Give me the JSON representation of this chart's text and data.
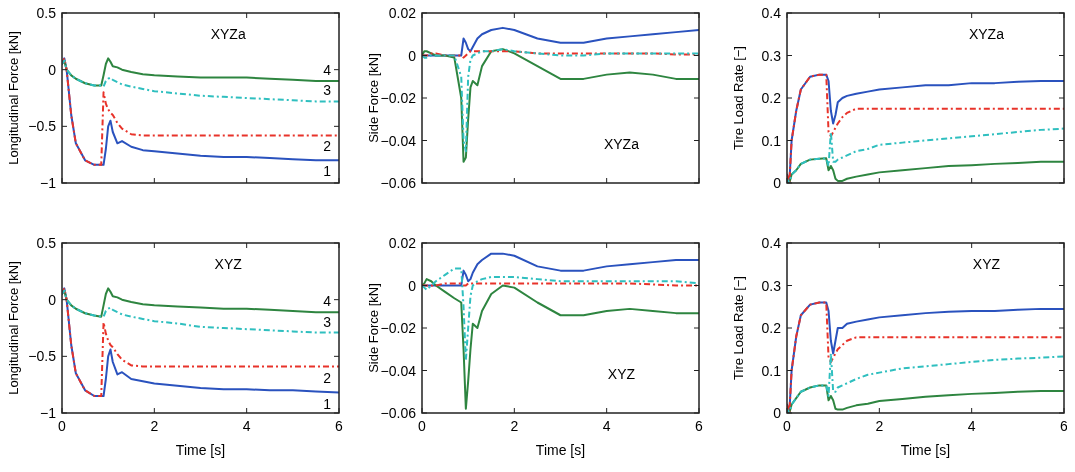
{
  "chart_data": [
    {
      "type": "line",
      "ylabel": "Longitudinal Force [kN]",
      "annotations": [
        "XYZa"
      ],
      "xlim": [
        0,
        6
      ],
      "xticks": [
        0,
        2,
        4,
        6
      ],
      "ylim": [
        -1,
        0.5
      ],
      "yticks": [
        {
          "value": -1,
          "label": "−1"
        },
        {
          "value": -0.5,
          "label": "−0.5"
        },
        0,
        0.5
      ],
      "grid": false,
      "legend": false,
      "tick_labels": "y",
      "x": [
        0,
        0.05,
        0.1,
        0.2,
        0.3,
        0.5,
        0.7,
        0.85,
        0.9,
        0.95,
        1.0,
        1.05,
        1.1,
        1.2,
        1.3,
        1.5,
        1.75,
        2,
        2.5,
        3,
        3.5,
        4,
        4.5,
        5,
        5.5,
        6
      ],
      "series": [
        {
          "name": "1",
          "color": "#2a52be",
          "line_style": "solid",
          "values": [
            0.05,
            0.1,
            0.0,
            -0.4,
            -0.65,
            -0.8,
            -0.84,
            -0.84,
            -0.84,
            -0.7,
            -0.5,
            -0.45,
            -0.55,
            -0.65,
            -0.63,
            -0.68,
            -0.71,
            -0.72,
            -0.74,
            -0.76,
            -0.77,
            -0.77,
            -0.78,
            -0.79,
            -0.8,
            -0.8
          ]
        },
        {
          "name": "2",
          "color": "#e8332a",
          "line_style": "dashed",
          "values": [
            0.05,
            0.1,
            0.0,
            -0.4,
            -0.65,
            -0.8,
            -0.84,
            -0.84,
            -0.2,
            -0.3,
            -0.35,
            -0.38,
            -0.4,
            -0.47,
            -0.52,
            -0.57,
            -0.58,
            -0.58,
            -0.58,
            -0.58,
            -0.58,
            -0.58,
            -0.58,
            -0.58,
            -0.58,
            -0.58
          ]
        },
        {
          "name": "3",
          "color": "#2fbfbf",
          "line_style": "dashed",
          "values": [
            0.05,
            0.08,
            0.0,
            -0.05,
            -0.08,
            -0.12,
            -0.14,
            -0.14,
            -0.15,
            -0.1,
            -0.08,
            -0.07,
            -0.09,
            -0.11,
            -0.13,
            -0.15,
            -0.17,
            -0.19,
            -0.21,
            -0.23,
            -0.24,
            -0.25,
            -0.26,
            -0.27,
            -0.28,
            -0.28
          ]
        },
        {
          "name": "4",
          "color": "#2e8540",
          "line_style": "solid",
          "values": [
            0.05,
            0.08,
            0.0,
            -0.05,
            -0.08,
            -0.12,
            -0.14,
            -0.14,
            -0.05,
            0.05,
            0.1,
            0.07,
            0.03,
            0.02,
            0.0,
            -0.02,
            -0.04,
            -0.05,
            -0.06,
            -0.07,
            -0.07,
            -0.07,
            -0.08,
            -0.09,
            -0.1,
            -0.1
          ]
        }
      ]
    },
    {
      "type": "line",
      "ylabel": "Side Force [kN]",
      "annotations": [
        "XYZa"
      ],
      "xlim": [
        0,
        6
      ],
      "xticks": [
        0,
        2,
        4,
        6
      ],
      "ylim": [
        -0.06,
        0.02
      ],
      "yticks": [
        {
          "value": -0.06,
          "label": "−0.06"
        },
        {
          "value": -0.04,
          "label": "−0.04"
        },
        {
          "value": -0.02,
          "label": "−0.02"
        },
        0,
        0.02
      ],
      "grid": false,
      "legend": false,
      "tick_labels": "y",
      "x": [
        0,
        0.05,
        0.1,
        0.2,
        0.3,
        0.5,
        0.7,
        0.85,
        0.9,
        0.95,
        1.0,
        1.05,
        1.1,
        1.2,
        1.3,
        1.5,
        1.75,
        2,
        2.5,
        3,
        3.5,
        4,
        4.5,
        5,
        5.5,
        6
      ],
      "series": [
        {
          "color": "#2a52be",
          "line_style": "solid",
          "values": [
            0,
            0,
            0,
            0,
            0,
            0,
            0,
            0,
            0.008,
            0.006,
            0.003,
            0.002,
            0.004,
            0.008,
            0.01,
            0.012,
            0.013,
            0.012,
            0.008,
            0.006,
            0.006,
            0.008,
            0.009,
            0.01,
            0.011,
            0.012
          ]
        },
        {
          "color": "#e8332a",
          "line_style": "dashed",
          "values": [
            0,
            0,
            0,
            0.001,
            0.001,
            0,
            0,
            0,
            -0.001,
            0,
            0.001,
            0.002,
            0.002,
            0.002,
            0.002,
            0.002,
            0.002,
            0.002,
            0.001,
            0.001,
            0.001,
            0.001,
            0.001,
            0.001,
            0.0005,
            0.0005
          ]
        },
        {
          "color": "#2fbfbf",
          "line_style": "dashed",
          "values": [
            0,
            -0.001,
            -0.001,
            0,
            0,
            0,
            0,
            -0.01,
            -0.04,
            -0.045,
            -0.01,
            -0.002,
            0,
            0.001,
            0.002,
            0.002,
            0.003,
            0.002,
            0.001,
            0,
            0,
            0.001,
            0.001,
            0.001,
            0.001,
            0.001
          ]
        },
        {
          "color": "#2e8540",
          "line_style": "solid",
          "values": [
            0,
            0.002,
            0.002,
            0.001,
            0,
            0,
            -0.001,
            -0.02,
            -0.05,
            -0.048,
            -0.03,
            -0.015,
            -0.012,
            -0.014,
            -0.005,
            0.002,
            0.003,
            0.001,
            -0.005,
            -0.011,
            -0.011,
            -0.009,
            -0.008,
            -0.009,
            -0.011,
            -0.011
          ]
        }
      ]
    },
    {
      "type": "line",
      "ylabel": "Tire Load Rate [−]",
      "annotations": [
        "XYZa"
      ],
      "xlim": [
        0,
        6
      ],
      "xticks": [
        0,
        2,
        4,
        6
      ],
      "ylim": [
        0,
        0.4
      ],
      "yticks": [
        0,
        0.1,
        0.2,
        0.3,
        0.4
      ],
      "grid": false,
      "legend": false,
      "tick_labels": "y",
      "x": [
        0,
        0.05,
        0.1,
        0.2,
        0.3,
        0.5,
        0.7,
        0.85,
        0.9,
        0.95,
        1.0,
        1.05,
        1.1,
        1.2,
        1.3,
        1.5,
        1.75,
        2,
        2.5,
        3,
        3.5,
        4,
        4.5,
        5,
        5.5,
        6
      ],
      "series": [
        {
          "color": "#2a52be",
          "line_style": "solid",
          "values": [
            0.02,
            0.0,
            0.1,
            0.17,
            0.22,
            0.25,
            0.255,
            0.255,
            0.24,
            0.17,
            0.14,
            0.16,
            0.19,
            0.2,
            0.205,
            0.21,
            0.215,
            0.22,
            0.225,
            0.23,
            0.23,
            0.235,
            0.235,
            0.238,
            0.24,
            0.24
          ]
        },
        {
          "color": "#e8332a",
          "line_style": "dashed",
          "values": [
            0.02,
            0.0,
            0.1,
            0.17,
            0.22,
            0.25,
            0.255,
            0.255,
            0.12,
            0.11,
            0.12,
            0.13,
            0.14,
            0.155,
            0.165,
            0.175,
            0.175,
            0.175,
            0.175,
            0.175,
            0.175,
            0.175,
            0.175,
            0.175,
            0.175,
            0.175
          ]
        },
        {
          "color": "#2fbfbf",
          "line_style": "dashed",
          "values": [
            0.01,
            0.0,
            0.02,
            0.03,
            0.045,
            0.055,
            0.057,
            0.058,
            0.04,
            0.12,
            0.05,
            0.05,
            0.055,
            0.06,
            0.065,
            0.075,
            0.08,
            0.09,
            0.095,
            0.1,
            0.105,
            0.11,
            0.115,
            0.12,
            0.125,
            0.128
          ]
        },
        {
          "color": "#2e8540",
          "line_style": "solid",
          "values": [
            0.01,
            0.0,
            0.02,
            0.03,
            0.045,
            0.055,
            0.057,
            0.058,
            0.03,
            0.04,
            0.03,
            0.01,
            0.005,
            0.005,
            0.01,
            0.015,
            0.02,
            0.025,
            0.03,
            0.035,
            0.04,
            0.042,
            0.045,
            0.047,
            0.05,
            0.05
          ]
        }
      ]
    },
    {
      "type": "line",
      "xlabel": "Time [s]",
      "ylabel": "Longitudinal Force [kN]",
      "annotations": [
        "XYZ"
      ],
      "xlim": [
        0,
        6
      ],
      "xticks": [
        0,
        2,
        4,
        6
      ],
      "ylim": [
        -1,
        0.5
      ],
      "yticks": [
        {
          "value": -1,
          "label": "−1"
        },
        {
          "value": -0.5,
          "label": "−0.5"
        },
        0,
        0.5
      ],
      "grid": false,
      "legend": false,
      "x": [
        0,
        0.05,
        0.1,
        0.2,
        0.3,
        0.5,
        0.7,
        0.85,
        0.9,
        0.95,
        1.0,
        1.05,
        1.1,
        1.2,
        1.3,
        1.5,
        1.75,
        2,
        2.5,
        3,
        3.5,
        4,
        4.5,
        5,
        5.5,
        6
      ],
      "series": [
        {
          "name": "1",
          "color": "#2a52be",
          "line_style": "solid",
          "values": [
            0.05,
            0.1,
            0.0,
            -0.4,
            -0.65,
            -0.8,
            -0.85,
            -0.85,
            -0.85,
            -0.7,
            -0.5,
            -0.44,
            -0.55,
            -0.66,
            -0.64,
            -0.7,
            -0.72,
            -0.74,
            -0.76,
            -0.78,
            -0.79,
            -0.79,
            -0.8,
            -0.8,
            -0.81,
            -0.82
          ]
        },
        {
          "name": "2",
          "color": "#e8332a",
          "line_style": "dashed",
          "values": [
            0.05,
            0.1,
            0.0,
            -0.4,
            -0.65,
            -0.8,
            -0.85,
            -0.85,
            -0.2,
            -0.3,
            -0.36,
            -0.4,
            -0.42,
            -0.48,
            -0.53,
            -0.58,
            -0.59,
            -0.59,
            -0.59,
            -0.59,
            -0.59,
            -0.59,
            -0.59,
            -0.59,
            -0.59,
            -0.59
          ]
        },
        {
          "name": "3",
          "color": "#2fbfbf",
          "line_style": "dashed",
          "values": [
            0.05,
            0.08,
            0.0,
            -0.05,
            -0.08,
            -0.12,
            -0.14,
            -0.15,
            -0.15,
            -0.1,
            -0.08,
            -0.07,
            -0.09,
            -0.11,
            -0.13,
            -0.15,
            -0.17,
            -0.19,
            -0.21,
            -0.24,
            -0.25,
            -0.26,
            -0.27,
            -0.28,
            -0.29,
            -0.29
          ]
        },
        {
          "name": "4",
          "color": "#2e8540",
          "line_style": "solid",
          "values": [
            0.05,
            0.08,
            0.0,
            -0.05,
            -0.08,
            -0.12,
            -0.14,
            -0.15,
            -0.05,
            0.05,
            0.1,
            0.07,
            0.03,
            0.02,
            0.0,
            -0.02,
            -0.04,
            -0.05,
            -0.06,
            -0.07,
            -0.08,
            -0.08,
            -0.09,
            -0.1,
            -0.11,
            -0.11
          ]
        }
      ]
    },
    {
      "type": "line",
      "xlabel": "Time [s]",
      "ylabel": "Side Force [kN]",
      "annotations": [
        "XYZ"
      ],
      "xlim": [
        0,
        6
      ],
      "xticks": [
        0,
        2,
        4,
        6
      ],
      "ylim": [
        -0.06,
        0.02
      ],
      "yticks": [
        {
          "value": -0.06,
          "label": "−0.06"
        },
        {
          "value": -0.04,
          "label": "−0.04"
        },
        {
          "value": -0.02,
          "label": "−0.02"
        },
        0,
        0.02
      ],
      "grid": false,
      "legend": false,
      "x": [
        0,
        0.05,
        0.1,
        0.2,
        0.3,
        0.5,
        0.7,
        0.85,
        0.9,
        0.95,
        1.0,
        1.05,
        1.1,
        1.2,
        1.3,
        1.5,
        1.75,
        2,
        2.5,
        3,
        3.5,
        4,
        4.5,
        5,
        5.5,
        6
      ],
      "series": [
        {
          "color": "#2a52be",
          "line_style": "solid",
          "values": [
            0,
            0,
            0,
            0,
            0,
            0,
            0,
            0,
            0.007,
            0.005,
            0.002,
            0.003,
            0.006,
            0.01,
            0.012,
            0.015,
            0.015,
            0.014,
            0.009,
            0.007,
            0.007,
            0.009,
            0.01,
            0.011,
            0.012,
            0.012
          ]
        },
        {
          "color": "#e8332a",
          "line_style": "dashed",
          "values": [
            0,
            0,
            0,
            0,
            0,
            0.001,
            0.001,
            0.001,
            0,
            0,
            0.001,
            0.001,
            0.001,
            0.001,
            0.001,
            0.001,
            0.001,
            0.001,
            0.001,
            0.001,
            0.001,
            0.001,
            0.001,
            0.0005,
            0,
            0
          ]
        },
        {
          "color": "#2fbfbf",
          "line_style": "dashed",
          "values": [
            0,
            -0.001,
            -0.002,
            0,
            0.002,
            0.005,
            0.008,
            0.008,
            -0.01,
            -0.035,
            -0.02,
            -0.005,
            0,
            0.002,
            0.003,
            0.004,
            0.004,
            0.004,
            0.003,
            0.002,
            0.002,
            0.002,
            0.002,
            0.002,
            0.002,
            0.001
          ]
        },
        {
          "color": "#2e8540",
          "line_style": "solid",
          "values": [
            0,
            0.001,
            0.003,
            0.002,
            0,
            -0.003,
            -0.006,
            -0.008,
            -0.03,
            -0.058,
            -0.045,
            -0.03,
            -0.018,
            -0.02,
            -0.012,
            -0.004,
            0,
            -0.001,
            -0.008,
            -0.014,
            -0.014,
            -0.012,
            -0.011,
            -0.012,
            -0.013,
            -0.013
          ]
        }
      ]
    },
    {
      "type": "line",
      "xlabel": "Time [s]",
      "ylabel": "Tire Load Rate [−]",
      "annotations": [
        "XYZ"
      ],
      "xlim": [
        0,
        6
      ],
      "xticks": [
        0,
        2,
        4,
        6
      ],
      "ylim": [
        0,
        0.4
      ],
      "yticks": [
        0,
        0.1,
        0.2,
        0.3,
        0.4
      ],
      "grid": false,
      "legend": false,
      "x": [
        0,
        0.05,
        0.1,
        0.2,
        0.3,
        0.5,
        0.7,
        0.85,
        0.9,
        0.95,
        1.0,
        1.05,
        1.1,
        1.2,
        1.3,
        1.5,
        1.75,
        2,
        2.5,
        3,
        3.5,
        4,
        4.5,
        5,
        5.5,
        6
      ],
      "series": [
        {
          "color": "#2a52be",
          "line_style": "solid",
          "values": [
            0.02,
            0.0,
            0.1,
            0.18,
            0.23,
            0.255,
            0.26,
            0.26,
            0.24,
            0.17,
            0.14,
            0.17,
            0.2,
            0.2,
            0.21,
            0.215,
            0.22,
            0.225,
            0.23,
            0.235,
            0.238,
            0.24,
            0.24,
            0.243,
            0.245,
            0.245
          ]
        },
        {
          "color": "#e8332a",
          "line_style": "dashed",
          "values": [
            0.02,
            0.0,
            0.1,
            0.18,
            0.23,
            0.255,
            0.26,
            0.26,
            0.13,
            0.12,
            0.13,
            0.14,
            0.15,
            0.16,
            0.17,
            0.178,
            0.178,
            0.178,
            0.178,
            0.178,
            0.178,
            0.178,
            0.178,
            0.178,
            0.178,
            0.178
          ]
        },
        {
          "color": "#2fbfbf",
          "line_style": "dashed",
          "values": [
            0.01,
            0.0,
            0.02,
            0.035,
            0.05,
            0.06,
            0.065,
            0.065,
            0.04,
            0.14,
            0.05,
            0.05,
            0.06,
            0.065,
            0.07,
            0.08,
            0.09,
            0.095,
            0.105,
            0.11,
            0.115,
            0.12,
            0.125,
            0.128,
            0.13,
            0.133
          ]
        },
        {
          "color": "#2e8540",
          "line_style": "solid",
          "values": [
            0.01,
            0.0,
            0.02,
            0.035,
            0.05,
            0.06,
            0.065,
            0.065,
            0.03,
            0.04,
            0.03,
            0.01,
            0.008,
            0.008,
            0.012,
            0.018,
            0.022,
            0.028,
            0.033,
            0.038,
            0.042,
            0.045,
            0.047,
            0.05,
            0.052,
            0.052
          ]
        }
      ]
    }
  ]
}
